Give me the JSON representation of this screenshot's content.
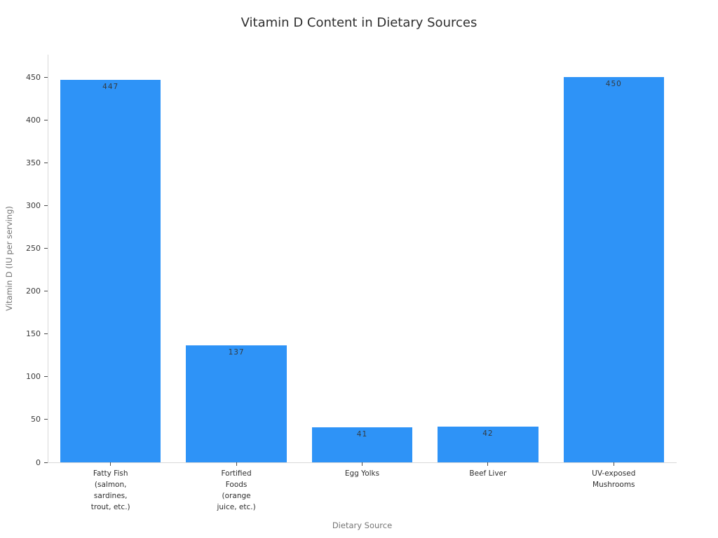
{
  "chart_data": {
    "type": "bar",
    "title": "Vitamin D Content in Dietary Sources",
    "xlabel": "Dietary Source",
    "ylabel": "Vitamin D (IU per serving)",
    "categories": [
      "Fatty Fish\n(salmon,\nsardines,\ntrout, etc.)",
      "Fortified\nFoods\n(orange\njuice, etc.)",
      "Egg Yolks",
      "Beef Liver",
      "UV-exposed\nMushrooms"
    ],
    "values": [
      447,
      137,
      41,
      42,
      450
    ],
    "bar_labels": [
      "447",
      "137",
      "41",
      "42",
      "450"
    ],
    "yticks": [
      0,
      50,
      100,
      150,
      200,
      250,
      300,
      350,
      400,
      450
    ],
    "ylim": [
      0,
      476
    ],
    "grid": false,
    "legend": "none",
    "colors": {
      "bar": "#2E93F7",
      "bar_value_text": "#333a40",
      "tick_label": "#3a3a3a",
      "axis_title": "#757575",
      "title": "#2e2e2e",
      "spine": "#d9d9d9",
      "background": "#ffffff"
    }
  }
}
